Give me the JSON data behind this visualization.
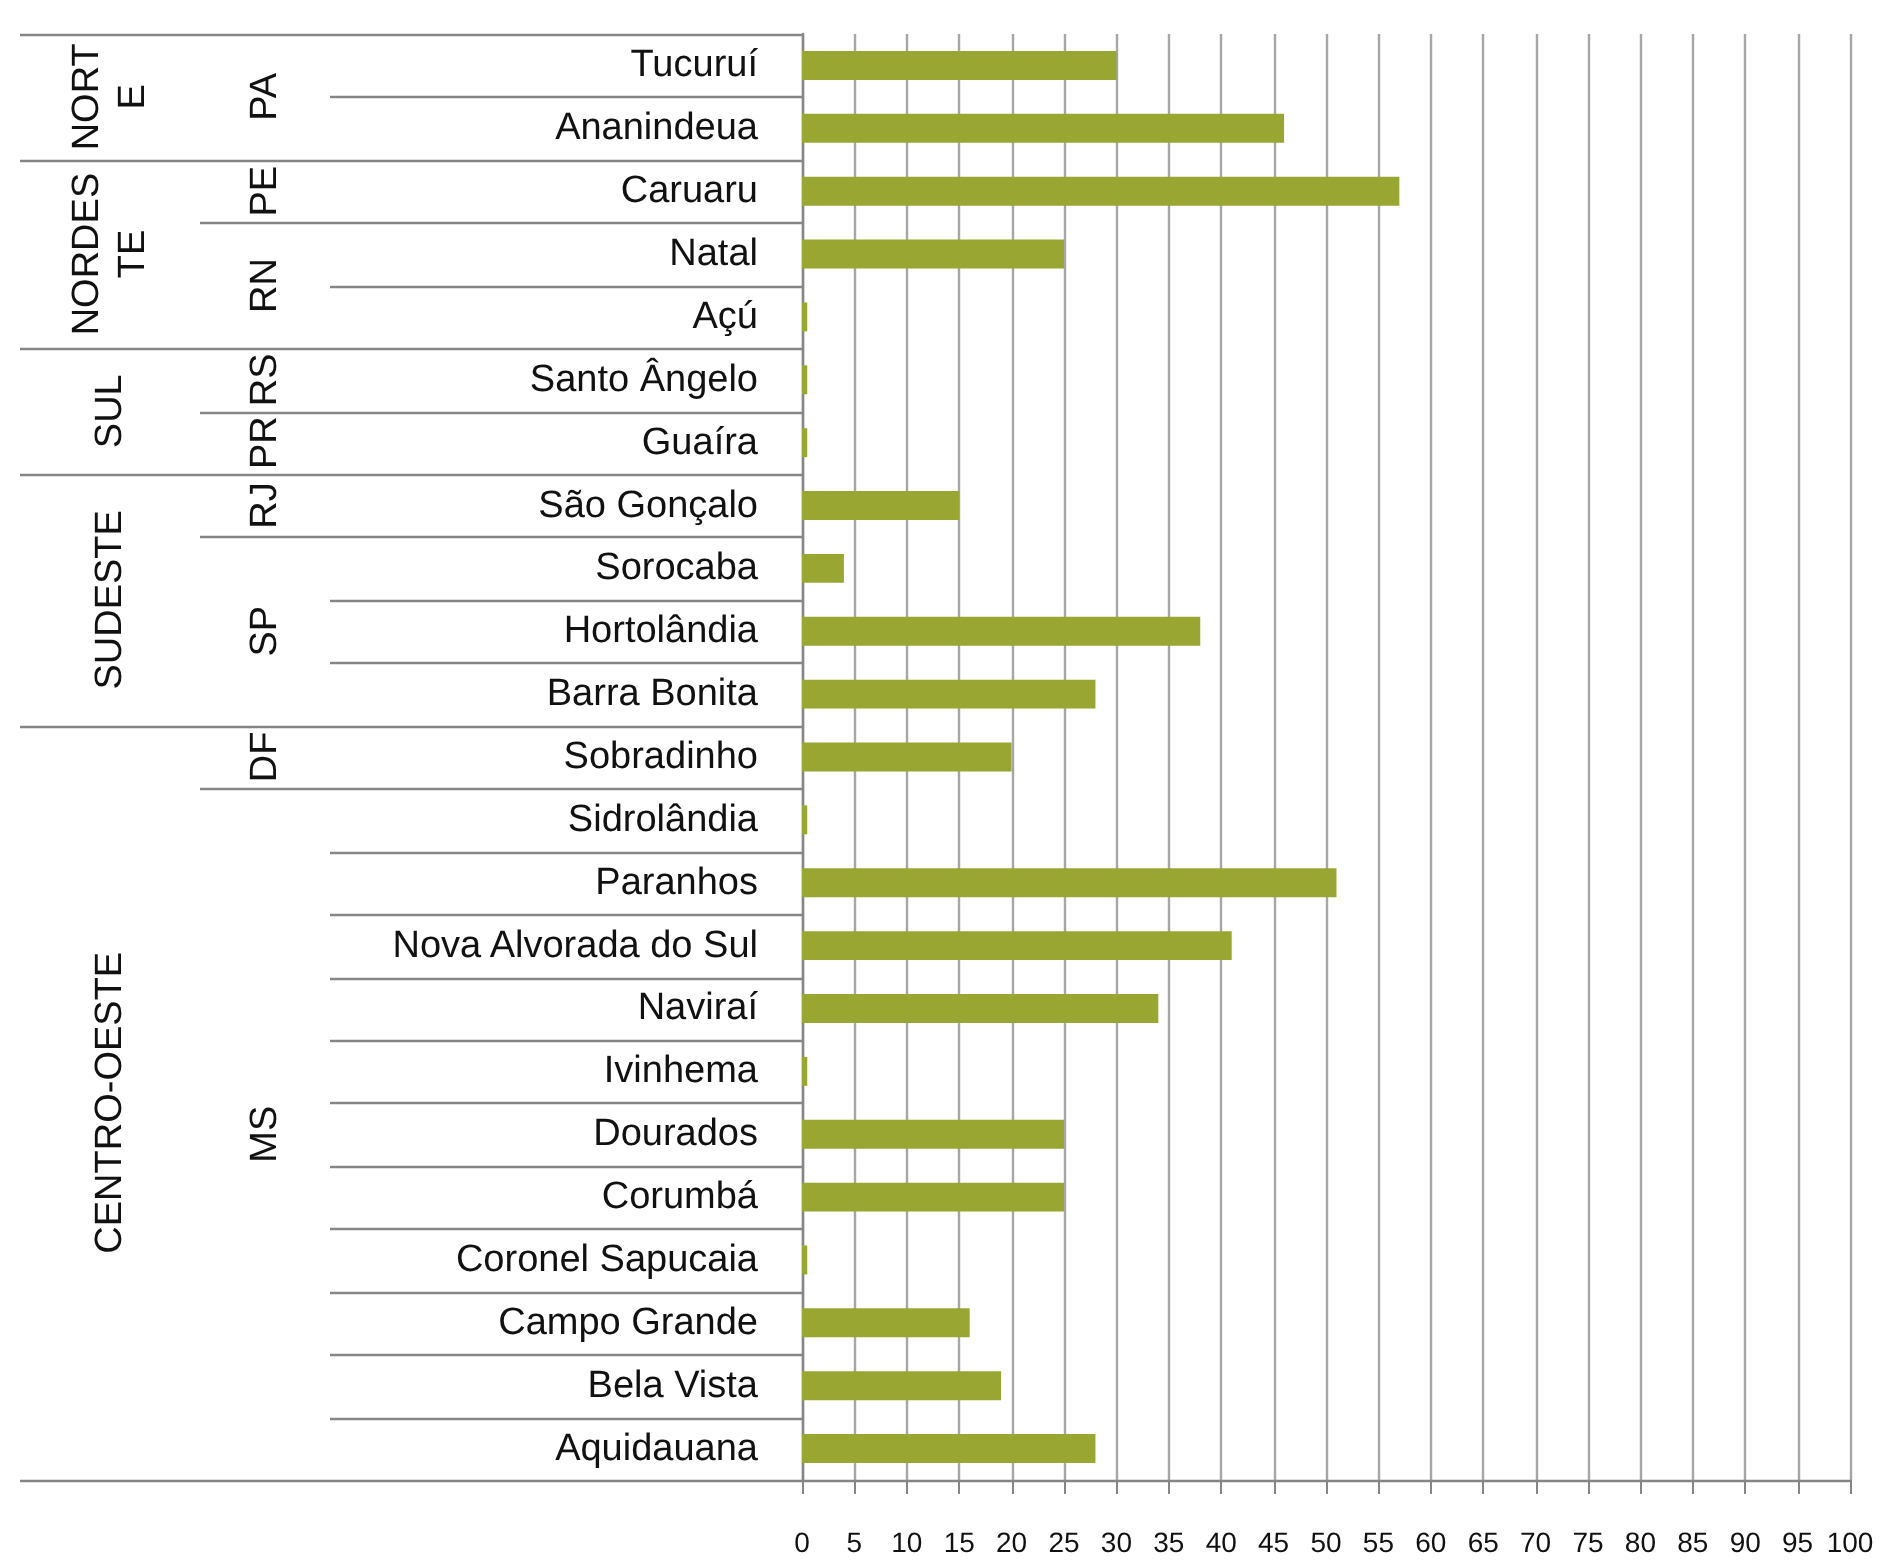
{
  "chart_data": {
    "type": "bar",
    "orientation": "horizontal",
    "categories": [
      "Tucuruí",
      "Ananindeua",
      "Caruaru",
      "Natal",
      "Açú",
      "Santo Ângelo",
      "Guaíra",
      "São Gonçalo",
      "Sorocaba",
      "Hortolândia",
      "Barra Bonita",
      "Sobradinho",
      "Sidrolândia",
      "Paranhos",
      "Nova Alvorada do Sul",
      "Naviraí",
      "Ivinhema",
      "Dourados",
      "Corumbá",
      "Coronel Sapucaia",
      "Campo Grande",
      "Bela Vista",
      "Aquidauana"
    ],
    "values": [
      30,
      46,
      57,
      25,
      0.5,
      0.5,
      0.5,
      15,
      4,
      38,
      28,
      20,
      0.5,
      51,
      41,
      34,
      0.5,
      25,
      25,
      0.5,
      16,
      19,
      28
    ],
    "color": "#9aa632",
    "xlim": [
      0,
      100
    ],
    "xticks": [
      0,
      5,
      10,
      15,
      20,
      25,
      30,
      35,
      40,
      45,
      50,
      55,
      60,
      65,
      70,
      75,
      80,
      85,
      90,
      95,
      100
    ],
    "grid": "x",
    "annotations": [
      "NORTE",
      "PA",
      "NORDESTE",
      "PE",
      "RN",
      "SUL",
      "RS",
      "PR",
      "SUDESTE",
      "RJ",
      "SP",
      "CENTRO-OESTE",
      "DF",
      "MS"
    ]
  }
}
